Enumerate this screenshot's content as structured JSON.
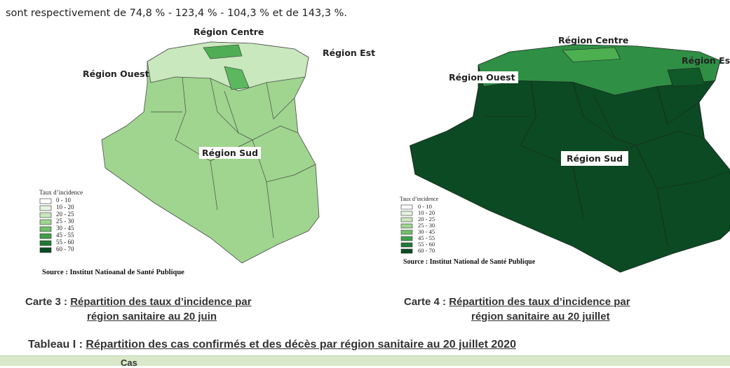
{
  "intro_text": "sont respectivement de 74,8 % - 123,4 % - 104,3 % et de 143,3 %.",
  "maps": [
    {
      "regions": {
        "centre": "Région Centre",
        "est": "Région Est",
        "ouest": "Région Ouest",
        "sud": "Région Sud"
      },
      "legend": {
        "title": "Taux d’incidence",
        "items": [
          "0 - 10",
          "10 - 20",
          "20 - 25",
          "25 - 30",
          "30 - 45",
          "45 - 55",
          "55 - 60",
          "60 - 70"
        ]
      },
      "source": "Source : Institut Natioanal de Santé Publique",
      "caption": {
        "label": "Carte 3 :",
        "lines": [
          "Répartition des taux d’incidence par",
          "région sanitaire au 20 juin"
        ]
      }
    },
    {
      "regions": {
        "centre": "Région Centre",
        "est": "Région Est",
        "ouest": "Région Ouest",
        "sud": "Région Sud"
      },
      "legend": {
        "title": "Taux d’incidence",
        "items": [
          "0 - 10",
          "10 - 20",
          "20 - 25",
          "25 - 30",
          "30 - 45",
          "45 - 55",
          "55 - 60",
          "60 - 70"
        ]
      },
      "source": "Source : Institut National de Santé Publique",
      "caption": {
        "label": "Carte 4 :",
        "lines": [
          "Répartition des taux d’incidence par",
          "région sanitaire au 20 juillet"
        ]
      }
    }
  ],
  "table": {
    "caption": {
      "label": "Tableau I :",
      "text": "Répartition des cas confirmés et des décès par région sanitaire au 20 juillet 2020"
    },
    "header": [
      "Cas"
    ]
  }
}
